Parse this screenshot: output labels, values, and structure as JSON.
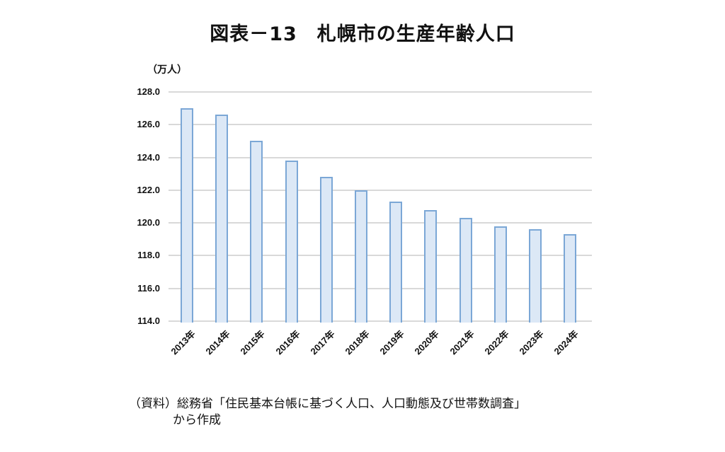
{
  "title": "図表－13　札幌市の生産年齢人口",
  "unit_label": "（万人）",
  "source": {
    "line1": "（資料）総務省「住民基本台帳に基づく人口、人口動態及び世帯数調査」",
    "line2": "から作成"
  },
  "colors": {
    "bar_fill": "#dce8f6",
    "bar_border": "#7ba7d6",
    "grid": "#d9d9d9"
  },
  "chart_data": {
    "type": "bar",
    "title": "図表－13　札幌市の生産年齢人口",
    "xlabel": "",
    "ylabel": "（万人）",
    "ylim": [
      114.0,
      128.0
    ],
    "yticks": [
      "114.0",
      "116.0",
      "118.0",
      "120.0",
      "122.0",
      "124.0",
      "126.0",
      "128.0"
    ],
    "grid": true,
    "legend": null,
    "categories": [
      "2013年",
      "2014年",
      "2015年",
      "2016年",
      "2017年",
      "2018年",
      "2019年",
      "2020年",
      "2021年",
      "2022年",
      "2023年",
      "2024年"
    ],
    "values": [
      127.0,
      126.6,
      125.0,
      123.8,
      122.8,
      122.0,
      121.3,
      120.8,
      120.3,
      119.8,
      119.6,
      119.3
    ]
  }
}
